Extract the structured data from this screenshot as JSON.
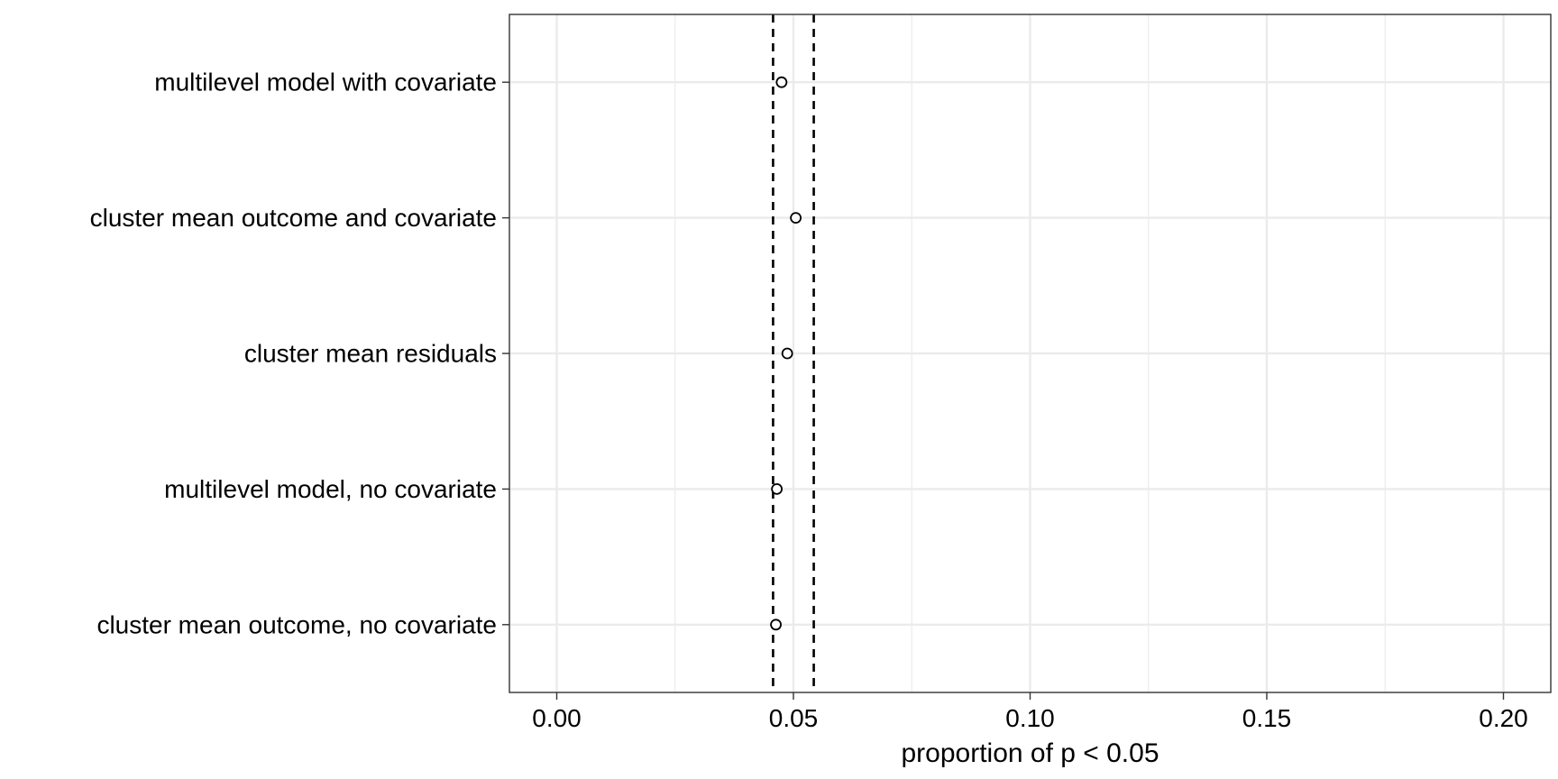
{
  "chart_data": {
    "type": "scatter",
    "title": "",
    "xlabel": "proportion of p < 0.05",
    "ylabel": "",
    "xlim": [
      -0.01,
      0.21
    ],
    "x_ticks": [
      0.0,
      0.05,
      0.1,
      0.15,
      0.2
    ],
    "x_tick_labels": [
      "0.00",
      "0.05",
      "0.10",
      "0.15",
      "0.20"
    ],
    "x_minor_ticks": [
      0.025,
      0.075,
      0.125,
      0.175
    ],
    "categories": [
      "multilevel model with covariate",
      "cluster mean outcome and covariate",
      "cluster mean residuals",
      "multilevel model, no covariate",
      "cluster mean outcome, no covariate"
    ],
    "values": [
      0.0475,
      0.0505,
      0.0487,
      0.0465,
      0.0463
    ],
    "reference_lines": [
      0.0457,
      0.0543
    ],
    "reference_line_style": "dashed",
    "marker": "open-circle",
    "grid": true,
    "legend": "none"
  }
}
